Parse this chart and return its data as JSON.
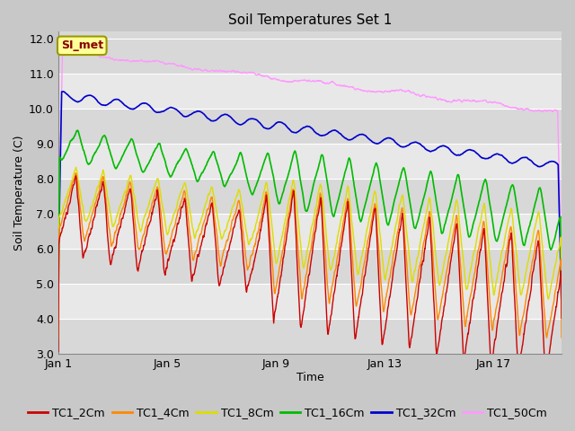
{
  "title": "Soil Temperatures Set 1",
  "xlabel": "Time",
  "ylabel": "Soil Temperature (C)",
  "ylim": [
    3.0,
    12.2
  ],
  "yticks": [
    3.0,
    4.0,
    5.0,
    6.0,
    7.0,
    8.0,
    9.0,
    10.0,
    11.0,
    12.0
  ],
  "xtick_pos": [
    0,
    4,
    8,
    12,
    16
  ],
  "xtick_labels": [
    "Jan 1",
    "Jan 5",
    "Jan 9",
    "Jan 13",
    "Jan 17"
  ],
  "xlim": [
    0,
    18.5
  ],
  "legend_labels": [
    "TC1_2Cm",
    "TC1_4Cm",
    "TC1_8Cm",
    "TC1_16Cm",
    "TC1_32Cm",
    "TC1_50Cm"
  ],
  "line_colors": [
    "#cc0000",
    "#ff8800",
    "#dddd00",
    "#00bb00",
    "#0000cc",
    "#ff99ff"
  ],
  "annotation_text": "SI_met",
  "annotation_color": "#880000",
  "annotation_bg": "#ffff99",
  "annotation_border": "#999900",
  "n_points": 1800,
  "days": 18.5,
  "band_colors": [
    "#d8d8d8",
    "#e8e8e8"
  ],
  "fig_bg": "#c8c8c8",
  "title_fontsize": 11,
  "axis_fontsize": 9,
  "legend_fontsize": 9
}
